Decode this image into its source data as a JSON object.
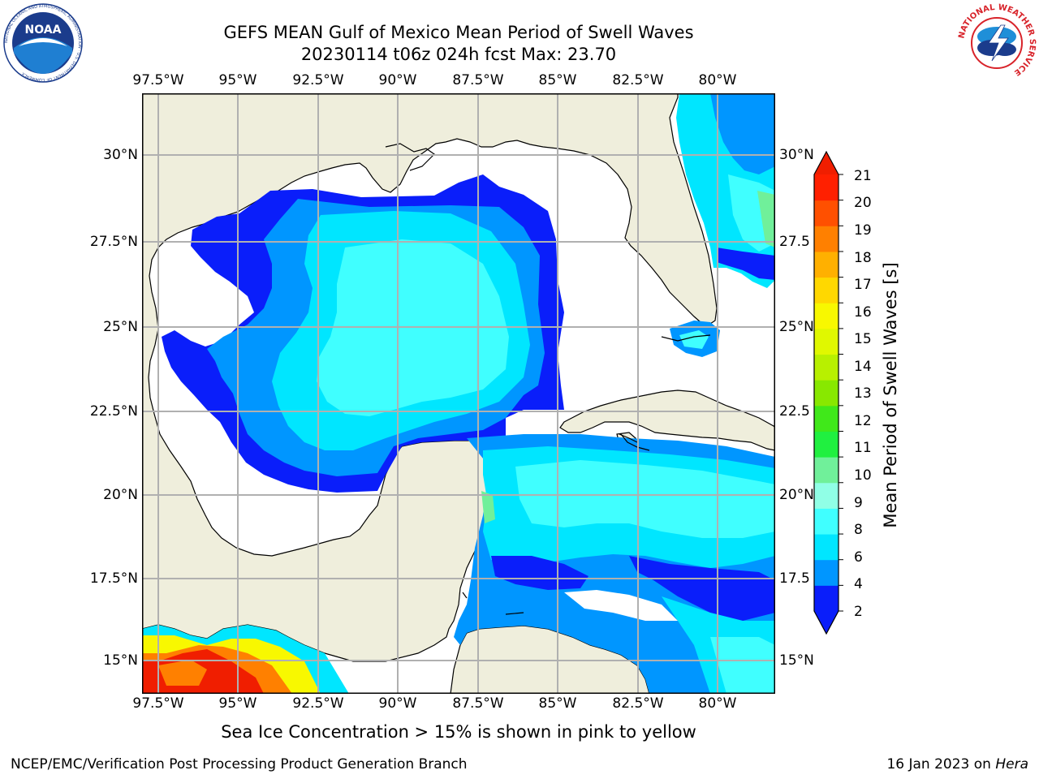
{
  "title": {
    "line1": "GEFS MEAN Gulf of Mexico Mean Period of Swell Waves",
    "line2": "20230114 t06z 024h fcst   Max: 23.70"
  },
  "logos": {
    "left": "noaa-logo",
    "left_text": "NOAA",
    "left_ring_text": "NATIONAL OCEANIC AND ATMOSPHERIC ADMINISTRATION · U.S. DEPARTMENT OF COMMERCE",
    "right": "national-weather-service-logo",
    "right_ring_text": "NATIONAL WEATHER SERVICE"
  },
  "map": {
    "lon_labels": [
      "97.5°W",
      "95°W",
      "92.5°W",
      "90°W",
      "87.5°W",
      "85°W",
      "82.5°W",
      "80°W"
    ],
    "lat_labels_left": [
      "30°N",
      "27.5°N",
      "25°N",
      "22.5°N",
      "20°N",
      "17.5°N",
      "15°N"
    ],
    "lat_labels_right": [
      "30°N",
      "27.5",
      "25°N",
      "22.5",
      "20°N",
      "17.5",
      "15°N"
    ],
    "land_color": "#efeedc",
    "no_data_color": "#ffffff",
    "grid_color": "#b0b0b0"
  },
  "colorbar": {
    "label": "Mean Period of Swell Waves [s]",
    "ticks": [
      "2",
      "4",
      "6",
      "8",
      "9",
      "10",
      "11",
      "12",
      "13",
      "14",
      "15",
      "16",
      "17",
      "18",
      "19",
      "20",
      "21"
    ],
    "colors": [
      "#0a1efa",
      "#0096ff",
      "#00e6ff",
      "#40ffff",
      "#90ffe6",
      "#70f09a",
      "#20f040",
      "#40e81a",
      "#88e800",
      "#b8f000",
      "#e0f800",
      "#f8f800",
      "#ffd800",
      "#ffb000",
      "#ff8000",
      "#ff5000",
      "#ff2000"
    ],
    "under_color": "#0a1efa",
    "over_color": "#f01e00"
  },
  "caption": "Sea Ice Concentration > 15% is shown in pink to yellow",
  "footer": {
    "left": "NCEP/EMC/Verification Post Processing Product Generation Branch",
    "right_date": "16 Jan 2023 on ",
    "right_host": "Hera"
  }
}
